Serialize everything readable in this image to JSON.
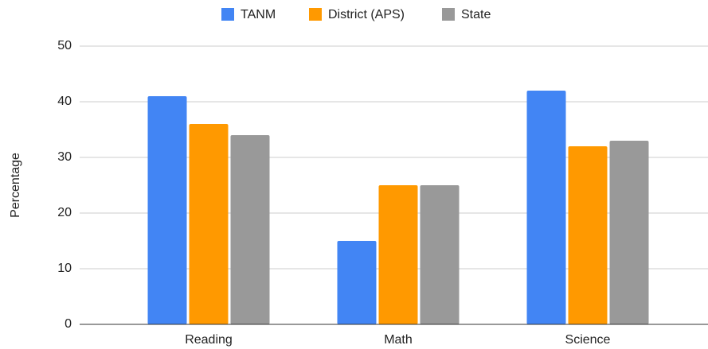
{
  "chart_data": {
    "type": "bar",
    "categories": [
      "Reading",
      "Math",
      "Science"
    ],
    "series": [
      {
        "name": "TANM",
        "color": "#4285f4",
        "values": [
          41,
          15,
          42
        ]
      },
      {
        "name": "District (APS)",
        "color": "#ff9900",
        "values": [
          36,
          25,
          32
        ]
      },
      {
        "name": "State",
        "color": "#999999",
        "values": [
          34,
          25,
          33
        ]
      }
    ],
    "y_label": "Percentage",
    "ylim": [
      0,
      50
    ],
    "yticks": [
      0,
      10,
      20,
      30,
      40,
      50
    ],
    "grid": true,
    "legend": "top"
  }
}
